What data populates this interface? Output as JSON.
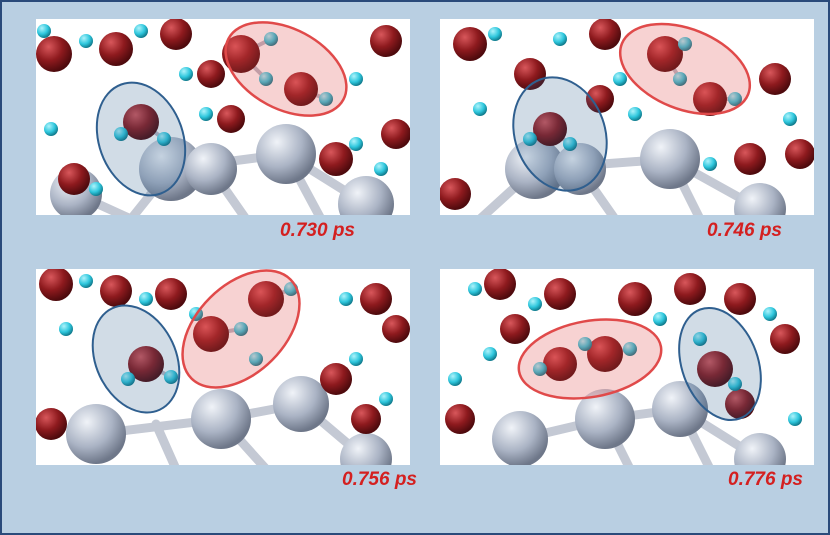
{
  "panels": [
    {
      "timestamp": "0.730 ps"
    },
    {
      "timestamp": "0.746 ps"
    },
    {
      "timestamp": "0.756 ps"
    },
    {
      "timestamp": "0.776 ps"
    }
  ],
  "colors": {
    "background": "#b9cfe2",
    "border": "#2a4a7a",
    "oxygen": "#8e1a1e",
    "hydrogen": "#2ec7dd",
    "metal": "#aab3c4",
    "bond": "#c4c9d4",
    "highlight_red": "#e04a4a",
    "highlight_blue": "#2f5f8f",
    "label": "#d42020"
  }
}
